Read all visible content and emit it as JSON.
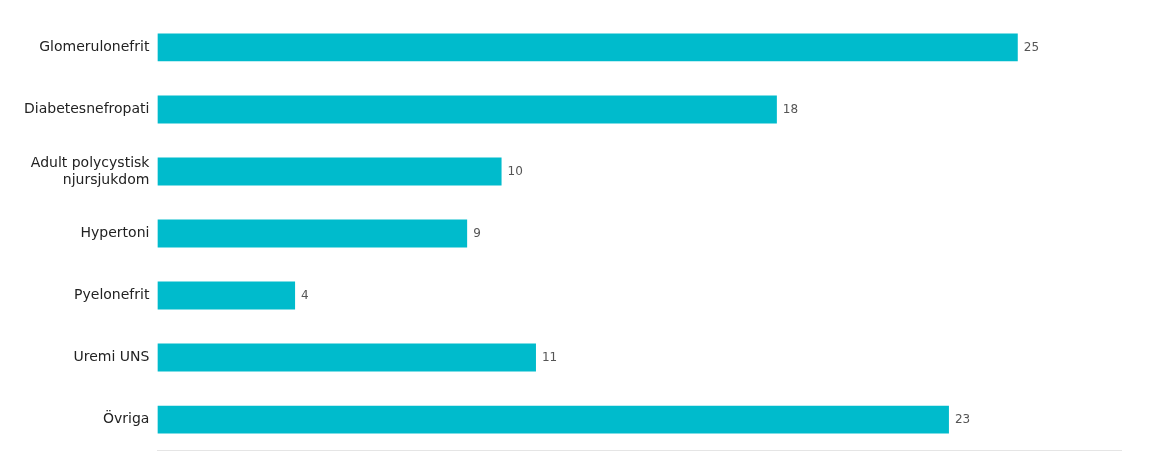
{
  "chart_data": {
    "type": "bar",
    "orientation": "horizontal",
    "categories": [
      "Övriga",
      "Uremi UNS",
      "Pyelonefrit",
      "Hypertoni",
      "Adult polycystisk\nnjursjukdom",
      "Diabetesnefropati",
      "Glomerulonefrit"
    ],
    "values": [
      23,
      11,
      4,
      9,
      10,
      18,
      25
    ],
    "color": "#00BBCC",
    "xlim": [
      0,
      28
    ],
    "grid": false,
    "data_labels": true,
    "tick_labels": "y"
  }
}
